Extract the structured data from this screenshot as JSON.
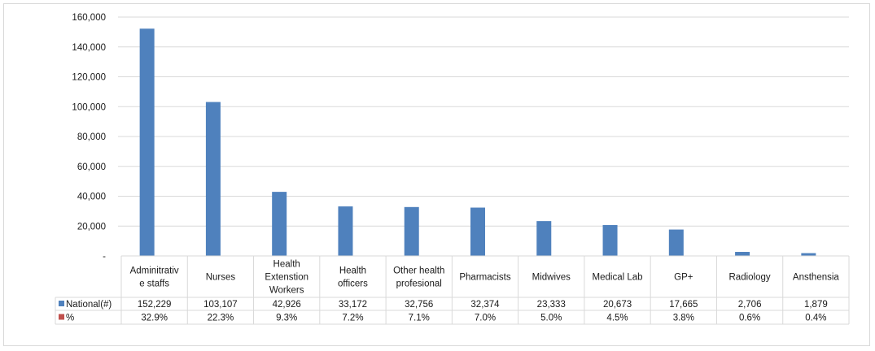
{
  "chart_data": {
    "type": "bar",
    "categories": [
      [
        "Adminitrativ",
        "e staffs"
      ],
      [
        "Nurses"
      ],
      [
        "Health",
        "Extenstion",
        "Workers"
      ],
      [
        "Health",
        "officers"
      ],
      [
        "Other health",
        "profesional"
      ],
      [
        "Pharmacists"
      ],
      [
        "Midwives"
      ],
      [
        "Medical Lab"
      ],
      [
        "GP+"
      ],
      [
        "Radiology"
      ],
      [
        "Ansthensia"
      ]
    ],
    "series": [
      {
        "name": "National(#)",
        "color": "#4f81bd",
        "values": [
          152229,
          103107,
          42926,
          33172,
          32756,
          32374,
          23333,
          20673,
          17665,
          2706,
          1879
        ],
        "labels": [
          "152,229",
          "103,107",
          "42,926",
          "33,172",
          "32,756",
          "32,374",
          "23,333",
          "20,673",
          "17,665",
          "2,706",
          "1,879"
        ]
      },
      {
        "name": "%",
        "color": "#c0504d",
        "values": [
          0.329,
          0.223,
          0.093,
          0.072,
          0.071,
          0.07,
          0.05,
          0.045,
          0.038,
          0.006,
          0.004
        ],
        "labels": [
          "32.9%",
          "22.3%",
          "9.3%",
          "7.2%",
          "7.1%",
          "7.0%",
          "5.0%",
          "4.5%",
          "3.8%",
          "0.6%",
          "0.4%"
        ]
      }
    ],
    "yticks": [
      0,
      20000,
      40000,
      60000,
      80000,
      100000,
      120000,
      140000,
      160000
    ],
    "ytick_labels": [
      "-",
      "20,000",
      "40,000",
      "60,000",
      "80,000",
      "100,000",
      "120,000",
      "140,000",
      "160,000"
    ],
    "ylim": [
      0,
      160000
    ],
    "grid": true,
    "legend": "data-table",
    "gridline_color": "#d9d9d9"
  }
}
